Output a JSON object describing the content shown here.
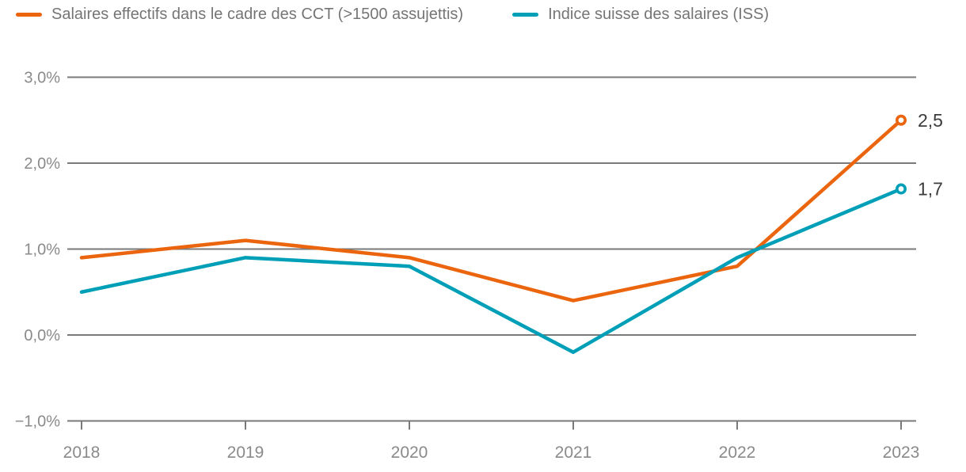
{
  "legend": {
    "items": [
      {
        "label": "Salaires effectifs dans le cadre des CCT (>1500 assujettis)"
      },
      {
        "label": "Indice suisse des salaires (ISS)"
      }
    ]
  },
  "chart_data": {
    "type": "line",
    "categories": [
      "2018",
      "2019",
      "2020",
      "2021",
      "2022",
      "2023"
    ],
    "series": [
      {
        "name": "Salaires effectifs dans le cadre des CCT (>1500 assujettis)",
        "color": "#ea650d",
        "values": [
          0.9,
          1.1,
          0.9,
          0.4,
          0.8,
          2.5
        ],
        "end_label": "2,5"
      },
      {
        "name": "Indice suisse des salaires (ISS)",
        "color": "#009fb8",
        "values": [
          0.5,
          0.9,
          0.8,
          -0.2,
          0.9,
          1.7
        ],
        "end_label": "1,7"
      }
    ],
    "y_ticks": [
      {
        "value": 3.0,
        "label": "3,0%"
      },
      {
        "value": 2.0,
        "label": "2,0%"
      },
      {
        "value": 1.0,
        "label": "1,0%"
      },
      {
        "value": 0.0,
        "label": "0,0%"
      },
      {
        "value": -1.0,
        "label": "−1,0%"
      }
    ],
    "ylim": [
      -1.0,
      3.0
    ],
    "xlabel": "",
    "ylabel": "",
    "grid": true,
    "legend_position": "top",
    "end_markers": "open-circle"
  },
  "colors": {
    "grid": "#7a7a7a",
    "axis_label_text": "#8a8a8a",
    "legend_text": "#757575",
    "end_label_text": "#3c3c3c",
    "background": "#ffffff"
  }
}
